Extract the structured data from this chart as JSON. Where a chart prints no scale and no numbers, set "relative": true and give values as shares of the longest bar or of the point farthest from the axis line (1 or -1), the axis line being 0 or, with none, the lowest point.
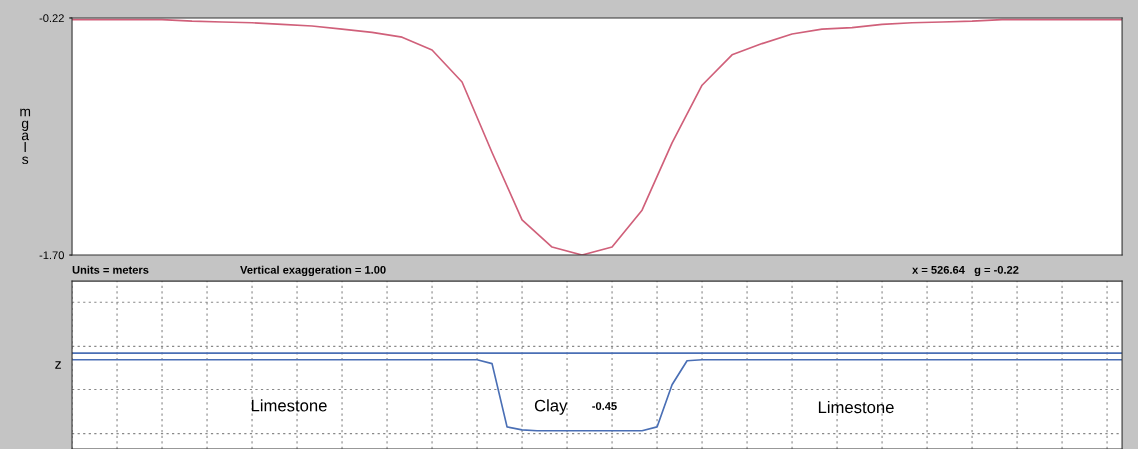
{
  "chart_data": [
    {
      "type": "line",
      "ylabel": "mgals",
      "categories": [
        null,
        null,
        null,
        null,
        null,
        null,
        null,
        null,
        null,
        null,
        null,
        null,
        null,
        null,
        null,
        null,
        null,
        null,
        null,
        null,
        null,
        null,
        null,
        null,
        null,
        null,
        null,
        null,
        null,
        null,
        null,
        null,
        null,
        null,
        null,
        null
      ],
      "series": [
        {
          "color": "#d0607a",
          "values": [
            -0.23,
            -0.23,
            -0.23,
            -0.23,
            -0.24,
            -0.245,
            -0.25,
            -0.26,
            -0.27,
            -0.29,
            -0.31,
            -0.34,
            -0.42,
            -0.62,
            -1.06,
            -1.48,
            -1.65,
            -1.7,
            -1.65,
            -1.42,
            -1.0,
            -0.64,
            -0.45,
            -0.38,
            -0.32,
            -0.29,
            -0.28,
            -0.26,
            -0.25,
            -0.245,
            -0.24,
            -0.23,
            -0.23,
            -0.23,
            -0.23,
            -0.23
          ]
        }
      ],
      "ylim": [
        -1.7,
        -0.22
      ],
      "yticks": [
        -0.22,
        {
          "value": -1.7,
          "label": "-1.70"
        }
      ],
      "tick_labels": "y",
      "grid": false,
      "marker": "none",
      "line_style": "solid"
    },
    {
      "type": "line",
      "ylabel": "z",
      "relative": true,
      "categories": [
        null,
        null,
        null,
        null,
        null,
        null,
        null,
        null,
        null,
        null,
        null,
        null,
        null,
        null,
        null,
        null,
        null,
        null,
        null,
        null,
        null,
        null,
        null,
        null,
        null,
        null,
        null,
        null,
        null,
        null,
        null,
        null,
        null,
        null,
        null,
        null,
        null,
        null,
        null,
        null,
        null,
        null,
        null,
        null,
        null,
        null,
        null,
        null,
        null,
        null,
        null,
        null,
        null,
        null,
        null,
        null,
        null,
        null,
        null,
        null,
        null,
        null,
        null,
        null,
        null,
        null,
        null,
        null,
        null,
        null,
        null
      ],
      "series": [
        {
          "color": "#4a6fb5",
          "values": [
            1,
            1,
            1,
            1,
            1,
            1,
            1,
            1,
            1,
            1,
            1,
            1,
            1,
            1,
            1,
            1,
            1,
            1,
            1,
            1,
            1,
            1,
            1,
            1,
            1,
            1,
            1,
            1,
            1,
            1,
            1,
            1,
            1,
            1,
            1,
            1,
            1,
            1,
            1,
            1,
            1,
            1,
            1,
            1,
            1,
            1,
            1,
            1,
            1,
            1,
            1,
            1,
            1,
            1,
            1,
            1,
            1,
            1,
            1,
            1,
            1,
            1,
            1,
            1,
            1,
            1,
            1,
            1,
            1,
            1,
            1
          ]
        },
        {
          "color": "#4a6fb5",
          "values": [
            0.93,
            0.93,
            0.93,
            0.93,
            0.93,
            0.93,
            0.93,
            0.93,
            0.93,
            0.93,
            0.93,
            0.93,
            0.93,
            0.93,
            0.93,
            0.93,
            0.93,
            0.93,
            0.93,
            0.93,
            0.93,
            0.93,
            0.93,
            0.93,
            0.93,
            0.93,
            0.93,
            0.93,
            0.89,
            0.23,
            0.2,
            0.19,
            0.19,
            0.19,
            0.19,
            0.19,
            0.19,
            0.19,
            0.19,
            0.23,
            0.67,
            0.92,
            0.93,
            0.93,
            0.93,
            0.93,
            0.93,
            0.93,
            0.93,
            0.93,
            0.93,
            0.93,
            0.93,
            0.93,
            0.93,
            0.93,
            0.93,
            0.93,
            0.93,
            0.93,
            0.93,
            0.93,
            0.93,
            0.93,
            0.93,
            0.93,
            0.93,
            0.93,
            0.93,
            0.93,
            0.93
          ]
        }
      ],
      "annotations": [
        "Units = meters",
        "Vertical exaggeration = 1.00",
        "x = 526.64   g = -0.22",
        "Limestone",
        "Clay",
        "-0.45",
        "Limestone"
      ],
      "tick_labels": false,
      "grid": true,
      "marker": "none",
      "line_style": "solid"
    }
  ]
}
